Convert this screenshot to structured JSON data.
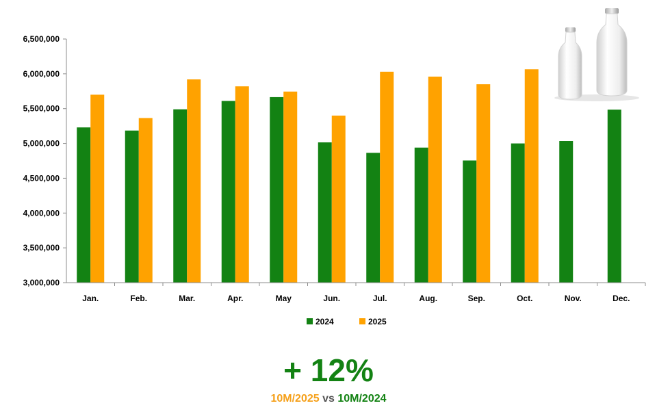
{
  "chart_data": {
    "type": "bar",
    "title": "",
    "xlabel": "",
    "ylabel": "",
    "categories": [
      "Jan.",
      "Feb.",
      "Mar.",
      "Apr.",
      "May",
      "Jun.",
      "Jul.",
      "Aug.",
      "Sep.",
      "Oct.",
      "Nov.",
      "Dec."
    ],
    "series": [
      {
        "name": "2024",
        "color": "#138213",
        "values": [
          5230000,
          5185000,
          5490000,
          5610000,
          5665000,
          5015000,
          4865000,
          4940000,
          4755000,
          5000000,
          5035000,
          5485000
        ]
      },
      {
        "name": "2025",
        "color": "#FFA200",
        "values": [
          5700000,
          5365000,
          5920000,
          5820000,
          5745000,
          5400000,
          6030000,
          5960000,
          5850000,
          6065000,
          null,
          null
        ]
      }
    ],
    "ylim": [
      3000000,
      6500000
    ],
    "yticks": [
      3000000,
      3500000,
      4000000,
      4500000,
      5000000,
      5500000,
      6000000,
      6500000
    ],
    "ytick_labels": [
      "3,000,000",
      "3,500,000",
      "4,000,000",
      "4,500,000",
      "5,000,000",
      "5,500,000",
      "6,000,000",
      "6,500,000"
    ],
    "grid": false,
    "legend_position": "bottom-center"
  },
  "summary": {
    "headline": "+ 12%",
    "period_current": "10M/2025",
    "vs_word": "vs",
    "period_previous": "10M/2024"
  },
  "decoration": {
    "image": "milk-bottles"
  }
}
